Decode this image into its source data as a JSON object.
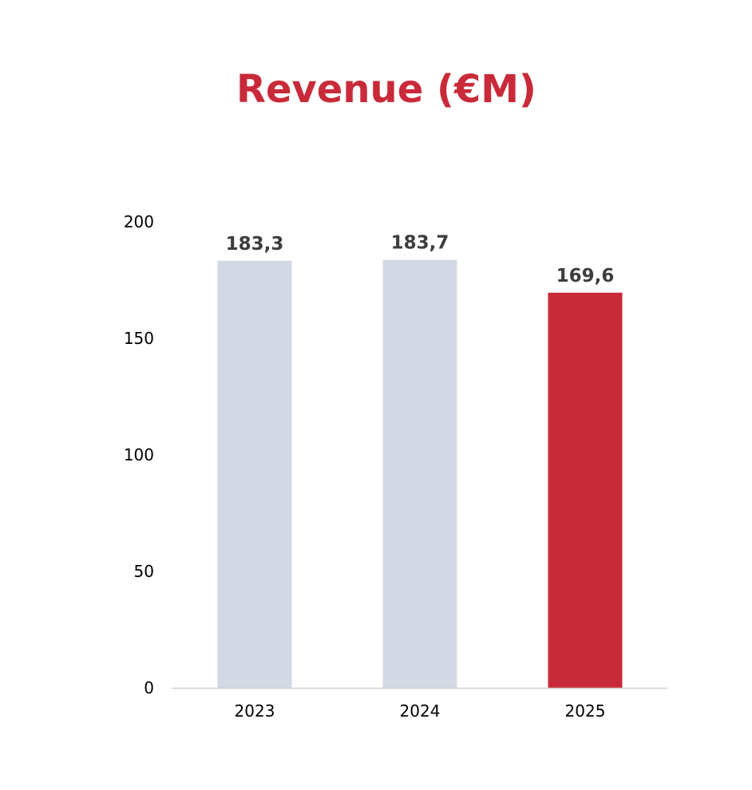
{
  "chart_data": {
    "type": "bar",
    "title": "Revenue (€M)",
    "categories": [
      "2023",
      "2024",
      "2025"
    ],
    "values": [
      183.3,
      183.7,
      169.6
    ],
    "data_labels": [
      "183,3",
      "183,7",
      "169,6"
    ],
    "yticks": [
      "0",
      "50",
      "100",
      "150",
      "200"
    ],
    "ylim": [
      0,
      200
    ],
    "xlabel": "",
    "ylabel": "",
    "grid": false,
    "legend": "none",
    "colors": [
      "#d3d9e4",
      "#d3d9e4",
      "#c92a39"
    ],
    "title_color": "#c92a39",
    "label_color": "#3d3d3d"
  }
}
